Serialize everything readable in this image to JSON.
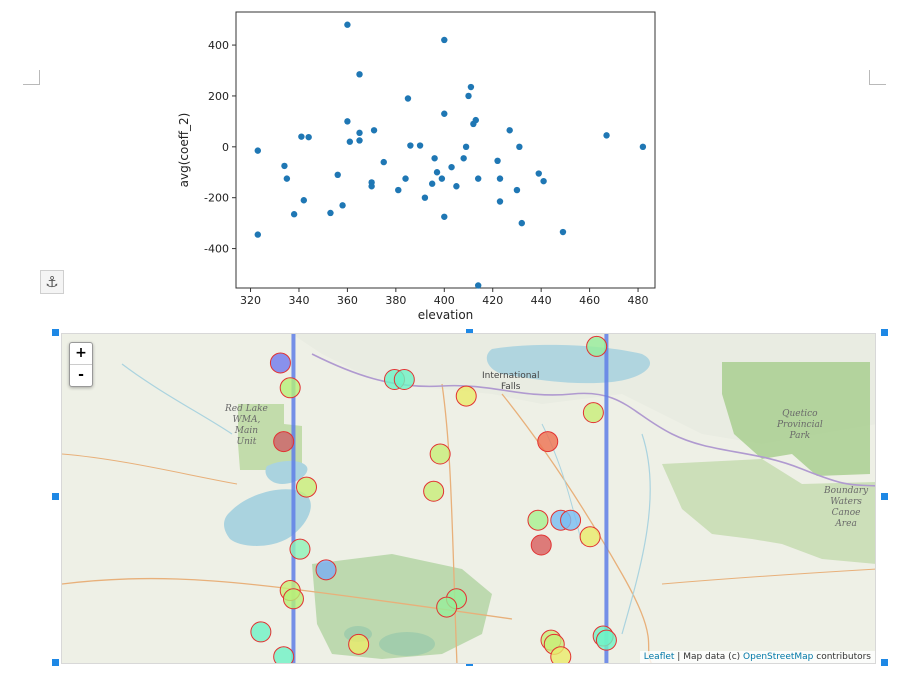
{
  "chart_data": {
    "type": "scatter",
    "xlabel": "elevation",
    "ylabel": "avg(coeff_2)",
    "xlim": [
      314,
      487
    ],
    "ylim": [
      -555,
      530
    ],
    "xticks": [
      320,
      340,
      360,
      380,
      400,
      420,
      440,
      460,
      480
    ],
    "yticks": [
      -400,
      -200,
      0,
      200,
      400
    ],
    "grid": false,
    "point_color": "#1f77b4",
    "points": [
      [
        323,
        -15
      ],
      [
        323,
        -345
      ],
      [
        334,
        -75
      ],
      [
        335,
        -125
      ],
      [
        338,
        -265
      ],
      [
        341,
        40
      ],
      [
        342,
        -210
      ],
      [
        344,
        38
      ],
      [
        353,
        -260
      ],
      [
        356,
        -110
      ],
      [
        358,
        -230
      ],
      [
        360,
        480
      ],
      [
        360,
        100
      ],
      [
        361,
        20
      ],
      [
        365,
        285
      ],
      [
        365,
        55
      ],
      [
        365,
        25
      ],
      [
        370,
        -140
      ],
      [
        370,
        -155
      ],
      [
        371,
        65
      ],
      [
        375,
        -60
      ],
      [
        381,
        -170
      ],
      [
        384,
        -125
      ],
      [
        385,
        190
      ],
      [
        386,
        5
      ],
      [
        390,
        5
      ],
      [
        392,
        -200
      ],
      [
        395,
        -145
      ],
      [
        396,
        -45
      ],
      [
        397,
        -100
      ],
      [
        399,
        -125
      ],
      [
        400,
        420
      ],
      [
        400,
        130
      ],
      [
        400,
        -275
      ],
      [
        403,
        -80
      ],
      [
        405,
        -155
      ],
      [
        408,
        -45
      ],
      [
        409,
        0
      ],
      [
        410,
        200
      ],
      [
        411,
        235
      ],
      [
        412,
        90
      ],
      [
        413,
        105
      ],
      [
        414,
        -545
      ],
      [
        414,
        -125
      ],
      [
        422,
        -55
      ],
      [
        423,
        -215
      ],
      [
        423,
        -125
      ],
      [
        427,
        65
      ],
      [
        430,
        -170
      ],
      [
        431,
        0
      ],
      [
        432,
        -300
      ],
      [
        439,
        -105
      ],
      [
        441,
        -135
      ],
      [
        449,
        -335
      ],
      [
        467,
        45
      ],
      [
        482,
        0
      ]
    ]
  },
  "toolbar": {
    "anchor_icon": "anchor-icon"
  },
  "map": {
    "zoom_in_label": "+",
    "zoom_out_label": "-",
    "attribution": {
      "leaflet": "Leaflet",
      "separator": " | Map data (c) ",
      "osm": "OpenStreetMap",
      "suffix": " contributors"
    },
    "labels": {
      "international_falls_1": "International",
      "international_falls_2": "Falls",
      "red_lake_1": "Red Lake",
      "red_lake_2": "WMA,",
      "red_lake_3": "Main",
      "red_lake_4": "Unit",
      "quetico_1": "Quetico",
      "quetico_2": "Provincial",
      "quetico_3": "Park",
      "bwca_1": "Boundary",
      "bwca_2": "Waters",
      "bwca_3": "Canoe",
      "bwca_4": "Area"
    },
    "line_color": "#5f7fe8",
    "markers": [
      {
        "lat": 48.69,
        "lon": -94.38,
        "color": "#6f79ee"
      },
      {
        "lat": 48.63,
        "lon": -94.35,
        "color": "#b6f078"
      },
      {
        "lat": 48.65,
        "lon": -94.03,
        "color": "#6ef2c6"
      },
      {
        "lat": 48.65,
        "lon": -94.0,
        "color": "#6ef2c6"
      },
      {
        "lat": 48.61,
        "lon": -93.81,
        "color": "#eaeb6a"
      },
      {
        "lat": 48.73,
        "lon": -93.41,
        "color": "#96ee9a"
      },
      {
        "lat": 48.57,
        "lon": -93.42,
        "color": "#c8ee78"
      },
      {
        "lat": 48.5,
        "lon": -94.37,
        "color": "#cd6068"
      },
      {
        "lat": 48.47,
        "lon": -93.89,
        "color": "#c8ee78"
      },
      {
        "lat": 48.5,
        "lon": -93.56,
        "color": "#ee7050"
      },
      {
        "lat": 48.39,
        "lon": -94.3,
        "color": "#c8ee78"
      },
      {
        "lat": 48.38,
        "lon": -93.91,
        "color": "#c8ee78"
      },
      {
        "lat": 48.31,
        "lon": -93.59,
        "color": "#a8f090"
      },
      {
        "lat": 48.31,
        "lon": -93.52,
        "color": "#79bdf2"
      },
      {
        "lat": 48.31,
        "lon": -93.49,
        "color": "#79bdf2"
      },
      {
        "lat": 48.24,
        "lon": -94.32,
        "color": "#8ef2b8"
      },
      {
        "lat": 48.27,
        "lon": -93.43,
        "color": "#eaeb6a"
      },
      {
        "lat": 48.25,
        "lon": -93.58,
        "color": "#d85e5e"
      },
      {
        "lat": 48.19,
        "lon": -94.24,
        "color": "#7aaef2"
      },
      {
        "lat": 48.14,
        "lon": -94.35,
        "color": "#c8ee78"
      },
      {
        "lat": 48.12,
        "lon": -94.34,
        "color": "#b6f078"
      },
      {
        "lat": 48.12,
        "lon": -93.84,
        "color": "#96ee9a"
      },
      {
        "lat": 48.1,
        "lon": -93.87,
        "color": "#96ee9a"
      },
      {
        "lat": 48.04,
        "lon": -94.44,
        "color": "#6ef2c6"
      },
      {
        "lat": 48.01,
        "lon": -94.14,
        "color": "#eaeb6a"
      },
      {
        "lat": 48.02,
        "lon": -93.55,
        "color": "#c8ee78"
      },
      {
        "lat": 48.01,
        "lon": -93.54,
        "color": "#c8ee78"
      },
      {
        "lat": 48.03,
        "lon": -93.39,
        "color": "#6ef2c6"
      },
      {
        "lat": 48.02,
        "lon": -93.38,
        "color": "#6ef2c6"
      },
      {
        "lat": 47.98,
        "lon": -94.37,
        "color": "#6ef2c6"
      },
      {
        "lat": 47.98,
        "lon": -93.52,
        "color": "#eaeb6a"
      }
    ],
    "bounds": {
      "west": -95.05,
      "east": -92.55,
      "north": 48.76,
      "south": 47.96
    },
    "vertical_lines_lon": [
      -94.34,
      -93.38
    ]
  }
}
